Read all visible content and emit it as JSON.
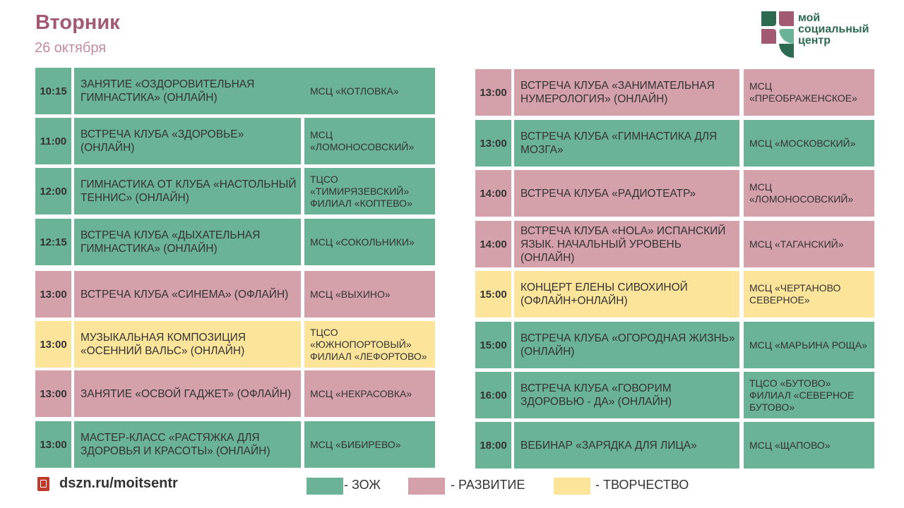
{
  "header": {
    "day": "Вторник",
    "date": "26 октября"
  },
  "logo": {
    "line1": "мой",
    "line2": "социальный",
    "line3": "центр"
  },
  "colors": {
    "zozh": "#6bb397",
    "razvitie": "#d4a0a9",
    "tvorchestvo": "#fce59a",
    "title": "#a15a72"
  },
  "schedule": {
    "left": [
      {
        "time": "10:15",
        "event": "ЗАНЯТИЕ «ОЗДОРОВИТЕЛЬНАЯ ГИМНАСТИКА» (ОНЛАЙН)",
        "venue": "МСЦ «КОТЛОВКА»",
        "category": "zozh"
      },
      {
        "time": "11:00",
        "event": "ВСТРЕЧА КЛУБА «ЗДОРОВЬЕ» (ОНЛАЙН)",
        "venue": "МСЦ «ЛОМОНОСОВСКИЙ»",
        "category": "zozh"
      },
      {
        "time": "12:00",
        "event": "ГИМНАСТИКА ОТ КЛУБА «НАСТОЛЬНЫЙ ТЕННИС» (ОНЛАЙН)",
        "venue": "ТЦСО «ТИМИРЯЗЕВСКИЙ» ФИЛИАЛ «КОПТЕВО»",
        "category": "zozh"
      },
      {
        "time": "12:15",
        "event": "ВСТРЕЧА КЛУБА «ДЫХАТЕЛЬНАЯ ГИМНАСТИКА» (ОНЛАЙН)",
        "venue": "МСЦ «СОКОЛЬНИКИ»",
        "category": "zozh"
      },
      {
        "time": "13:00",
        "event": "ВСТРЕЧА КЛУБА «СИНЕМА» (ОФЛАЙН)",
        "venue": "МСЦ «ВЫХИНО»",
        "category": "razvitie"
      },
      {
        "time": "13:00",
        "event": "МУЗЫКАЛЬНАЯ КОМПОЗИЦИЯ «ОСЕННИЙ ВАЛЬС» (ОНЛАЙН)",
        "venue": "ТЦСО «ЮЖНОПОРТОВЫЙ» ФИЛИАЛ «ЛЕФОРТОВО»",
        "category": "tvorchestvo"
      },
      {
        "time": "13:00",
        "event": "ЗАНЯТИЕ «ОСВОЙ ГАДЖЕТ» (ОФЛАЙН)",
        "venue": "МСЦ «НЕКРАСОВКА»",
        "category": "razvitie"
      },
      {
        "time": "13:00",
        "event": "МАСТЕР-КЛАСС «РАСТЯЖКА ДЛЯ ЗДОРОВЬЯ И КРАСОТЫ» (ОНЛАЙН)",
        "venue": "МСЦ «БИБИРЕВО»",
        "category": "zozh"
      }
    ],
    "right": [
      {
        "time": "13:00",
        "event": "ВСТРЕЧА КЛУБА «ЗАНИМАТЕЛЬНАЯ НУМЕРОЛОГИЯ» (ОНЛАЙН)",
        "venue": "МСЦ «ПРЕОБРАЖЕНСКОЕ»",
        "category": "razvitie"
      },
      {
        "time": "13:00",
        "event": "ВСТРЕЧА КЛУБА «ГИМНАСТИКА ДЛЯ МОЗГА»",
        "venue": "МСЦ «МОСКОВСКИЙ»",
        "category": "zozh"
      },
      {
        "time": "14:00",
        "event": "ВСТРЕЧА КЛУБА «РАДИОТЕАТР»",
        "venue": "МСЦ «ЛОМОНОСОВСКИЙ»",
        "category": "razvitie"
      },
      {
        "time": "14:00",
        "event": "ВСТРЕЧА КЛУБА «HOLA» ИСПАНСКИЙ ЯЗЫК. НАЧАЛЬНЫЙ УРОВЕНЬ (ОНЛАЙН)",
        "venue": "МСЦ «ТАГАНСКИЙ»",
        "category": "razvitie"
      },
      {
        "time": "15:00",
        "event": "КОНЦЕРТ ЕЛЕНЫ СИВОХИНОЙ (ОФЛАЙН+ОНЛАЙН)",
        "venue": "МСЦ «ЧЕРТАНОВО СЕВЕРНОЕ»",
        "category": "tvorchestvo"
      },
      {
        "time": "15:00",
        "event": "ВСТРЕЧА КЛУБА «ОГОРОДНАЯ ЖИЗНЬ» (ОНЛАЙН)",
        "venue": "МСЦ «МАРЬИНА РОЩА»",
        "category": "zozh"
      },
      {
        "time": "16:00",
        "event": "ВСТРЕЧА КЛУБА «ГОВОРИМ ЗДОРОВЬЮ - ДА» (ОНЛАЙН)",
        "venue": "ТЦСО «БУТОВО» ФИЛИАЛ «СЕВЕРНОЕ БУТОВО»",
        "category": "zozh"
      },
      {
        "time": "18:00",
        "event": "ВЕБИНАР «ЗАРЯДКА ДЛЯ ЛИЦА»",
        "venue": "МСЦ «ЩАПОВО»",
        "category": "zozh"
      }
    ]
  },
  "footer": {
    "url": "dszn.ru/moitsentr"
  },
  "legend": [
    {
      "label": "- ЗОЖ",
      "category": "zozh"
    },
    {
      "label": "- РАЗВИТИЕ",
      "category": "razvitie"
    },
    {
      "label": "- ТВОРЧЕСТВО",
      "category": "tvorchestvo"
    }
  ]
}
